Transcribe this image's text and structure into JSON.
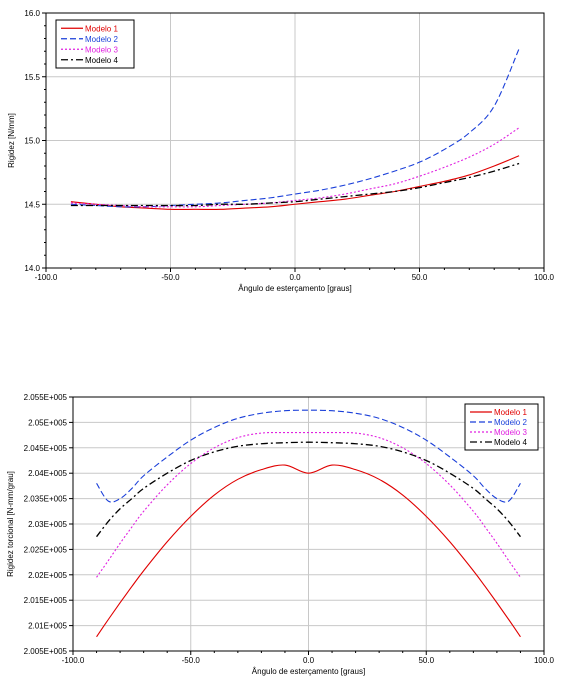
{
  "chart_data": [
    {
      "type": "line",
      "title": "",
      "xlabel": "Ângulo de esterçamento [graus]",
      "ylabel": "Rigidez [N/mm]",
      "xlim": [
        -100,
        100
      ],
      "ylim": [
        14.0,
        16.0
      ],
      "x_ticks": [
        -100,
        -50,
        0,
        50,
        100
      ],
      "x_tick_labels": [
        "-100.0",
        "-50.0",
        "0.0",
        "50.0",
        "100.0"
      ],
      "y_ticks": [
        14.0,
        14.5,
        15.0,
        15.5,
        16.0
      ],
      "y_tick_labels": [
        "14.0",
        "14.5",
        "15.0",
        "15.5",
        "16.0"
      ],
      "grid": true,
      "legend_position": "top-left",
      "x": [
        -90,
        -80,
        -70,
        -60,
        -50,
        -40,
        -30,
        -20,
        -10,
        0,
        10,
        20,
        30,
        40,
        50,
        60,
        70,
        80,
        90
      ],
      "series": [
        {
          "name": "Modelo 1",
          "color": "#e00000",
          "dash": "solid",
          "values": [
            14.52,
            14.5,
            14.48,
            14.47,
            14.46,
            14.46,
            14.46,
            14.47,
            14.48,
            14.5,
            14.52,
            14.54,
            14.57,
            14.6,
            14.64,
            14.68,
            14.73,
            14.8,
            14.88
          ]
        },
        {
          "name": "Modelo 2",
          "color": "#1a3fd9",
          "dash": "dashed",
          "values": [
            14.5,
            14.49,
            14.48,
            14.48,
            14.49,
            14.5,
            14.51,
            14.53,
            14.55,
            14.58,
            14.61,
            14.65,
            14.7,
            14.76,
            14.83,
            14.93,
            15.06,
            15.27,
            15.72
          ]
        },
        {
          "name": "Modelo 3",
          "color": "#e020e0",
          "dash": "dotted",
          "values": [
            14.51,
            14.5,
            14.49,
            14.48,
            14.48,
            14.48,
            14.49,
            14.5,
            14.51,
            14.53,
            14.55,
            14.58,
            14.62,
            14.66,
            14.72,
            14.79,
            14.87,
            14.97,
            15.1
          ]
        },
        {
          "name": "Modelo 4",
          "color": "#000000",
          "dash": "dashdot",
          "values": [
            14.49,
            14.49,
            14.49,
            14.49,
            14.49,
            14.49,
            14.5,
            14.5,
            14.51,
            14.52,
            14.54,
            14.56,
            14.58,
            14.6,
            14.63,
            14.67,
            14.71,
            14.76,
            14.82
          ]
        }
      ]
    },
    {
      "type": "line",
      "title": "",
      "xlabel": "Ângulo de esterçamento [graus]",
      "ylabel": "Rigidez torcional [N-mm/grau]",
      "xlim": [
        -100,
        100
      ],
      "ylim": [
        200500,
        205500
      ],
      "x_ticks": [
        -100,
        -50,
        0,
        50,
        100
      ],
      "x_tick_labels": [
        "-100.0",
        "-50.0",
        "0.0",
        "50.0",
        "100.0"
      ],
      "y_ticks": [
        200500,
        201000,
        201500,
        202000,
        202500,
        203000,
        203500,
        204000,
        204500,
        205000,
        205500
      ],
      "y_tick_labels": [
        "2.005E+005",
        "2.01E+005",
        "2.015E+005",
        "2.02E+005",
        "2.025E+005",
        "2.03E+005",
        "2.035E+005",
        "2.04E+005",
        "2.045E+005",
        "2.05E+005",
        "2.055E+005"
      ],
      "grid": true,
      "legend_position": "top-right",
      "x": [
        -90,
        -85,
        -80,
        -75,
        -70,
        -60,
        -50,
        -40,
        -30,
        -20,
        -10,
        0,
        10,
        20,
        30,
        40,
        50,
        60,
        70,
        75,
        80,
        85,
        90
      ],
      "series": [
        {
          "name": "Modelo 1",
          "color": "#e00000",
          "dash": "solid",
          "values": [
            200780,
            201120,
            201450,
            201770,
            202080,
            202650,
            203150,
            203570,
            203880,
            204070,
            204160,
            204000,
            204160,
            204070,
            203880,
            203570,
            203150,
            202650,
            202080,
            201770,
            201450,
            201120,
            200780
          ]
        },
        {
          "name": "Modelo 2",
          "color": "#1a3fd9",
          "dash": "dashed",
          "values": [
            203800,
            203450,
            203500,
            203700,
            203950,
            204320,
            204650,
            204900,
            205080,
            205180,
            205230,
            205240,
            205230,
            205180,
            205080,
            204900,
            204650,
            204320,
            203950,
            203700,
            203500,
            203450,
            203800
          ]
        },
        {
          "name": "Modelo 3",
          "color": "#e020e0",
          "dash": "dotted",
          "values": [
            201950,
            202280,
            202620,
            202940,
            203250,
            203770,
            204190,
            204500,
            204700,
            204790,
            204800,
            204800,
            204800,
            204790,
            204700,
            204500,
            204190,
            203770,
            203250,
            202940,
            202620,
            202280,
            201950
          ]
        },
        {
          "name": "Modelo 4",
          "color": "#000000",
          "dash": "dashdot",
          "values": [
            202750,
            203050,
            203300,
            203500,
            203700,
            204000,
            204250,
            204420,
            204530,
            204580,
            204600,
            204610,
            204600,
            204580,
            204530,
            204420,
            204250,
            204000,
            203700,
            203500,
            203300,
            203050,
            202750
          ]
        }
      ]
    }
  ]
}
